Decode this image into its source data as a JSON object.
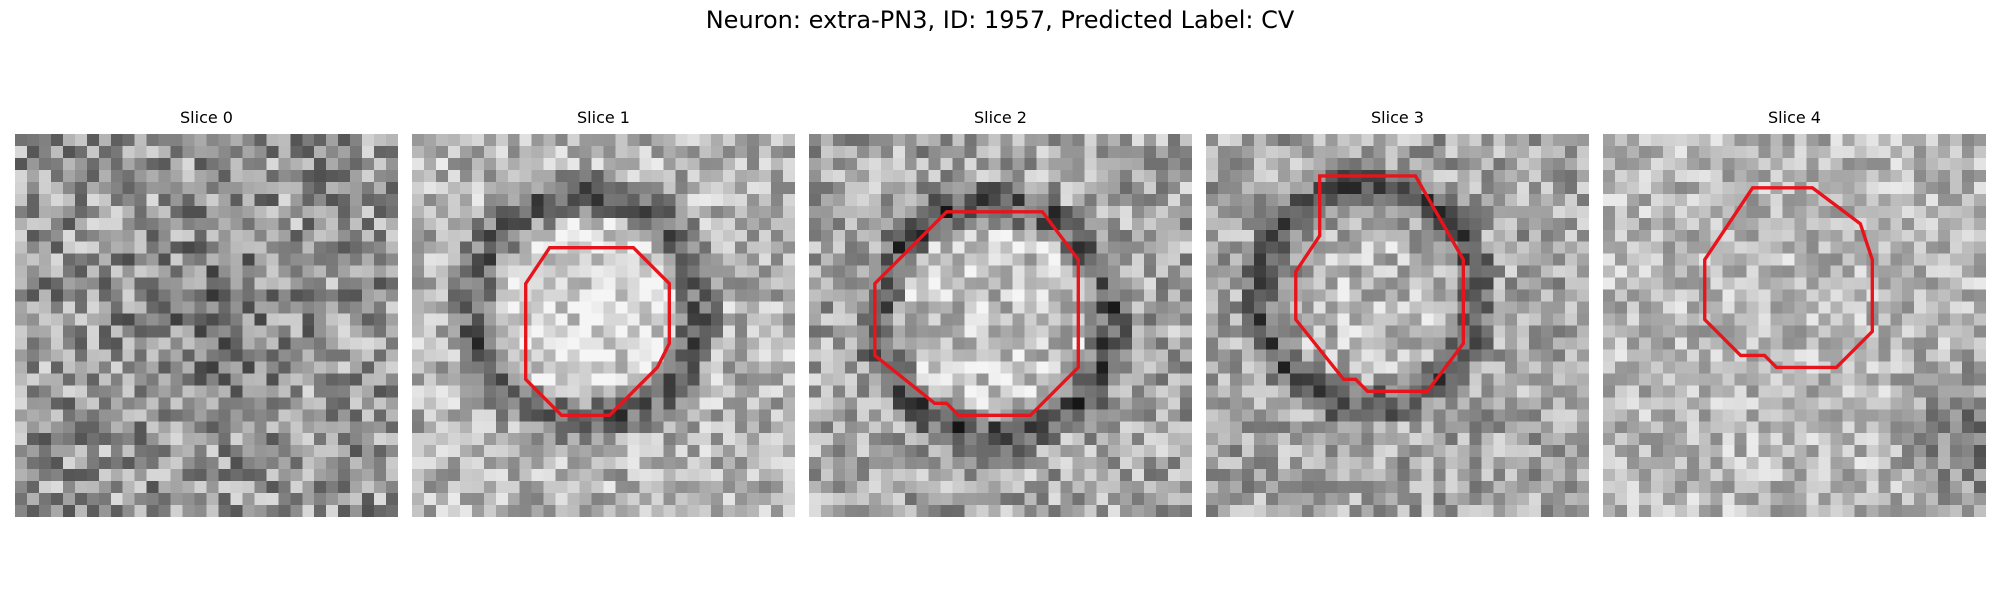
{
  "figure": {
    "title": "Neuron: extra-PN3, ID: 1957, Predicted Label: CV"
  },
  "colors": {
    "contour": "#e8141b",
    "background": "#ffffff"
  },
  "panels": [
    {
      "label": "Slice 0",
      "has_contour": false
    },
    {
      "label": "Slice 1",
      "has_contour": true
    },
    {
      "label": "Slice 2",
      "has_contour": true
    },
    {
      "label": "Slice 3",
      "has_contour": true
    },
    {
      "label": "Slice 4",
      "has_contour": true
    }
  ]
}
